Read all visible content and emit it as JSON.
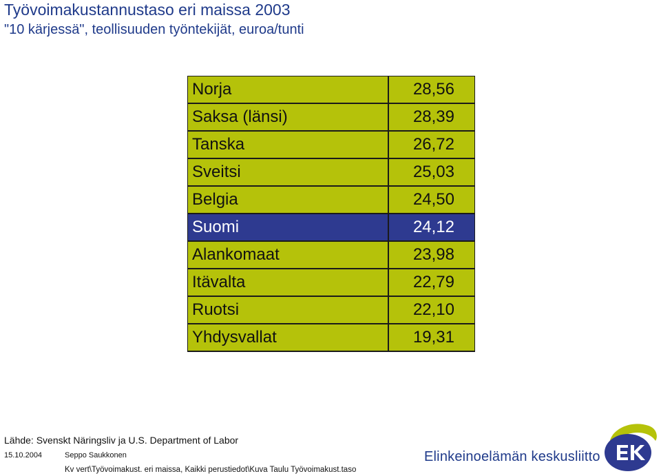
{
  "title": "Työvoimakustannustaso eri maissa 2003",
  "subtitle": "\"10 kärjessä\", teollisuuden työntekijät, euroa/tunti",
  "colors": {
    "row_bg": "#b5c20a",
    "highlight_bg": "#2e3a90",
    "title_color": "#1f3a8a",
    "border": "#1a1a1a"
  },
  "rows": [
    {
      "country": "Norja",
      "value": "28,56"
    },
    {
      "country": "Saksa (länsi)",
      "value": "28,39"
    },
    {
      "country": "Tanska",
      "value": "26,72"
    },
    {
      "country": "Sveitsi",
      "value": "25,03"
    },
    {
      "country": "Belgia",
      "value": "24,50"
    },
    {
      "country": "Suomi",
      "value": "24,12"
    },
    {
      "country": "Alankomaat",
      "value": "23,98"
    },
    {
      "country": "Itävalta",
      "value": "22,79"
    },
    {
      "country": "Ruotsi",
      "value": "22,10"
    },
    {
      "country": "Yhdysvallat",
      "value": "19,31"
    }
  ],
  "highlighted_country": "Suomi",
  "footer": {
    "source": "Lähde: Svenskt Näringsliv ja U.S. Department of Labor",
    "date": "15.10.2004",
    "author": "Seppo Saukkonen",
    "path": "Kv vert\\Työvoimakust. eri maissa, Kaikki perustiedot\\Kuva Taulu Työvoimakust.taso",
    "brand": "Elinkeinoelämän keskusliitto",
    "logo_text": "EK"
  }
}
